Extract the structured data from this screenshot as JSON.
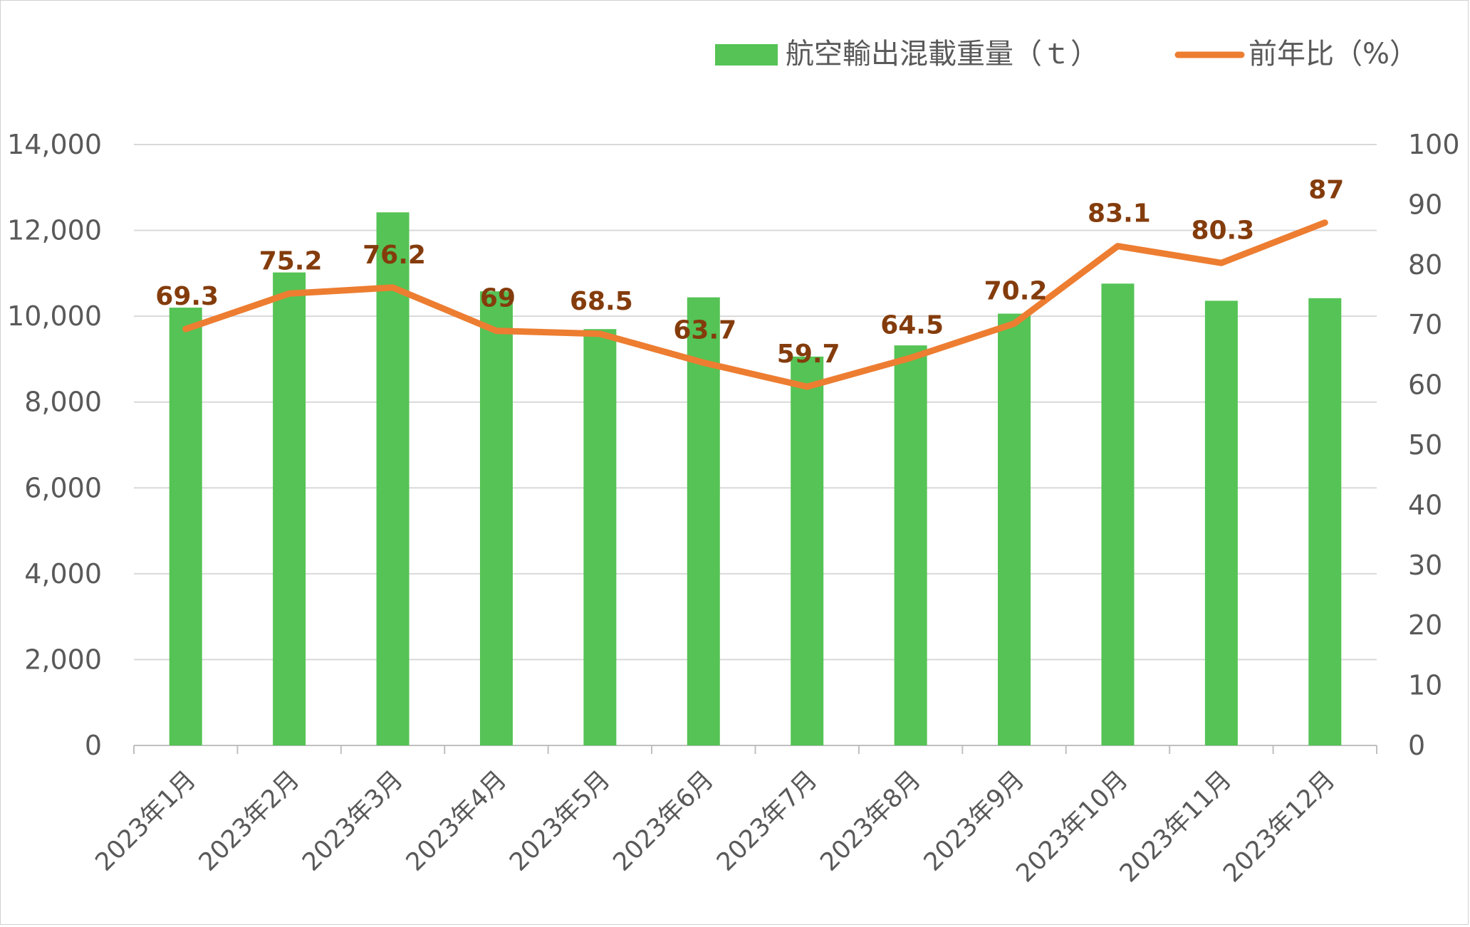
{
  "chart_data": {
    "type": "bar",
    "categories": [
      "2023年1月",
      "2023年2月",
      "2023年3月",
      "2023年4月",
      "2023年5月",
      "2023年6月",
      "2023年7月",
      "2023年8月",
      "2023年9月",
      "2023年10月",
      "2023年11月",
      "2023年12月"
    ],
    "series": [
      {
        "name": "航空輸出混載重量（ｔ）",
        "type": "bar",
        "axis": "left",
        "color": "#55c355",
        "values": [
          10200,
          11020,
          12420,
          10580,
          9700,
          10440,
          9060,
          9320,
          10060,
          10760,
          10360,
          10420
        ]
      },
      {
        "name": "前年比（%）",
        "type": "line",
        "axis": "right",
        "color": "#ed7d31",
        "values": [
          69.3,
          75.2,
          76.2,
          69,
          68.5,
          63.7,
          59.7,
          64.5,
          70.2,
          83.1,
          80.3,
          87
        ],
        "labels": [
          "69.3",
          "75.2",
          "76.2",
          "69",
          "68.5",
          "63.7",
          "59.7",
          "64.5",
          "70.2",
          "83.1",
          "80.3",
          "87"
        ],
        "label_color": "#843c0c"
      }
    ],
    "y_left": {
      "lim": [
        0,
        14000
      ],
      "ticks": [
        "0",
        "2,000",
        "4,000",
        "6,000",
        "8,000",
        "10,000",
        "12,000",
        "14,000"
      ]
    },
    "y_right": {
      "lim": [
        0,
        100
      ],
      "ticks": [
        "0",
        "10",
        "20",
        "30",
        "40",
        "50",
        "60",
        "70",
        "80",
        "90",
        "100"
      ]
    },
    "grid": true,
    "legend_position": "top-right"
  }
}
